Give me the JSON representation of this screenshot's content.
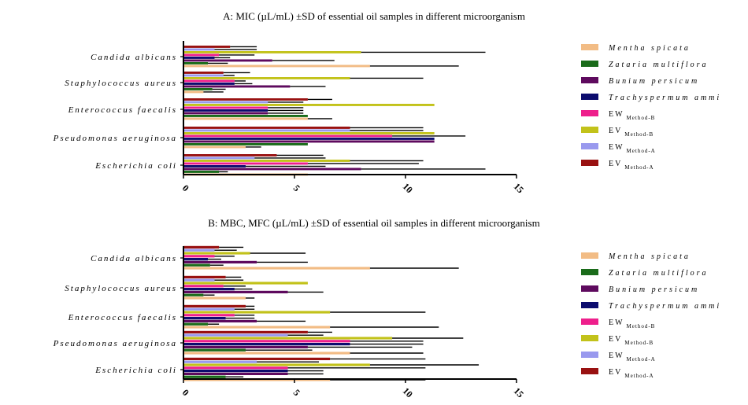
{
  "chart_data": [
    {
      "type": "bar",
      "orientation": "horizontal",
      "title": "A: MIC (µL/mL) ±SD of essential oil samples in different microorganism",
      "categories": [
        "Candida albicans",
        "Staphylococcus aureus",
        "Enterococcus faecalis",
        "Pseudomonas aeruginosa",
        "Escherichia coli"
      ],
      "xlim": [
        0,
        15
      ],
      "xticks": [
        "0",
        "5",
        "10",
        "15"
      ],
      "error_bars": true,
      "series": [
        {
          "name": "Mentha spicata",
          "values": [
            8.4,
            0.9,
            5.6,
            2.8,
            5.6
          ],
          "errors": [
            4.0,
            0.9,
            1.1,
            0.7,
            1.4
          ]
        },
        {
          "name": "Zataria multiflora",
          "values": [
            1.1,
            1.3,
            5.6,
            5.6,
            1.6
          ],
          "errors": [
            0.9,
            0.6,
            0.0,
            0.0,
            0.4
          ]
        },
        {
          "name": "Bunium persicum",
          "values": [
            4.0,
            4.8,
            3.8,
            11.3,
            8.0
          ],
          "errors": [
            2.8,
            1.6,
            1.6,
            0.0,
            5.6
          ]
        },
        {
          "name": "Trachyspermum ammi",
          "values": [
            1.4,
            2.3,
            3.8,
            11.3,
            2.8
          ],
          "errors": [
            0.7,
            0.8,
            1.6,
            0.0,
            3.6
          ]
        },
        {
          "name": "EW Method-B",
          "values": [
            1.6,
            2.3,
            3.8,
            9.4,
            5.6
          ],
          "errors": [
            1.6,
            0.5,
            1.6,
            3.3,
            5.0
          ]
        },
        {
          "name": "EV Method-B",
          "values": [
            8.0,
            7.5,
            11.3,
            11.3,
            7.5
          ],
          "errors": [
            5.6,
            3.3,
            0.0,
            0.0,
            3.3
          ]
        },
        {
          "name": "EW Method-A",
          "values": [
            1.4,
            1.8,
            3.8,
            7.5,
            3.2
          ],
          "errors": [
            1.9,
            0.5,
            1.6,
            3.3,
            3.2
          ]
        },
        {
          "name": "EV Method-A",
          "values": [
            2.1,
            1.8,
            5.6,
            7.5,
            4.2
          ],
          "errors": [
            1.2,
            1.2,
            1.1,
            3.3,
            2.1
          ]
        }
      ]
    },
    {
      "type": "bar",
      "orientation": "horizontal",
      "title": "B: MBC, MFC (µL/mL) ±SD of essential oil samples in different microorganism",
      "categories": [
        "Candida albicans",
        "Staphylococcus aureus",
        "Enterococcus faecalis",
        "Pseudomonas aeruginosa",
        "Escherichia coli"
      ],
      "xlim": [
        0,
        15
      ],
      "xticks": [
        "0",
        "5",
        "10",
        "15"
      ],
      "error_bars": true,
      "series": [
        {
          "name": "Mentha spicata",
          "values": [
            8.4,
            2.8,
            6.6,
            7.5,
            6.6
          ],
          "errors": [
            4.0,
            0.4,
            4.9,
            3.3,
            4.3
          ]
        },
        {
          "name": "Zataria multiflora",
          "values": [
            1.2,
            0.9,
            1.1,
            2.8,
            1.9
          ],
          "errors": [
            0.6,
            0.5,
            0.5,
            3.0,
            0.8
          ]
        },
        {
          "name": "Bunium persicum",
          "values": [
            3.3,
            4.7,
            3.3,
            5.6,
            4.7
          ],
          "errors": [
            2.3,
            1.6,
            2.2,
            4.7,
            1.6
          ]
        },
        {
          "name": "Trachyspermum ammi",
          "values": [
            1.1,
            2.3,
            1.9,
            7.5,
            4.7
          ],
          "errors": [
            0.6,
            0.8,
            1.3,
            3.3,
            1.6
          ]
        },
        {
          "name": "EW Method-B",
          "values": [
            1.4,
            1.8,
            2.3,
            7.5,
            4.7
          ],
          "errors": [
            0.9,
            1.0,
            0.9,
            3.3,
            6.2
          ]
        },
        {
          "name": "EV Method-B",
          "values": [
            3.0,
            5.6,
            6.6,
            9.4,
            8.4
          ],
          "errors": [
            2.5,
            0.0,
            4.3,
            3.2,
            4.9
          ]
        },
        {
          "name": "EW Method-A",
          "values": [
            1.4,
            1.4,
            2.3,
            4.7,
            3.3
          ],
          "errors": [
            1.0,
            1.3,
            0.9,
            1.6,
            2.8
          ]
        },
        {
          "name": "EV Method-A",
          "values": [
            1.6,
            1.9,
            2.8,
            5.6,
            6.6
          ],
          "errors": [
            1.1,
            0.7,
            0.4,
            1.1,
            4.3
          ]
        }
      ]
    }
  ],
  "legend": [
    {
      "name": "Mentha spicata",
      "main": "Mentha spicata",
      "sub": "",
      "italic": true,
      "color": "#f2bc85"
    },
    {
      "name": "Zataria multiflora",
      "main": "Zataria multiflora",
      "sub": "",
      "italic": true,
      "color": "#1a6b1a"
    },
    {
      "name": "Bunium persicum",
      "main": "Bunium persicum",
      "sub": "",
      "italic": true,
      "color": "#5e0a5e"
    },
    {
      "name": "Trachyspermum ammi",
      "main": "Trachyspermum ammi",
      "sub": "",
      "italic": true,
      "color": "#0c0c6e"
    },
    {
      "name": "EW Method-B",
      "main": "EW",
      "sub": "Method-B",
      "italic": false,
      "color": "#ee1f8c"
    },
    {
      "name": "EV Method-B",
      "main": "EV",
      "sub": "Method-B",
      "italic": false,
      "color": "#c2c21a"
    },
    {
      "name": "EW Method-A",
      "main": "EW",
      "sub": "Method-A",
      "italic": false,
      "color": "#9999ee"
    },
    {
      "name": "EV Method-A",
      "main": "EV",
      "sub": "Method-A",
      "italic": false,
      "color": "#991111"
    }
  ]
}
